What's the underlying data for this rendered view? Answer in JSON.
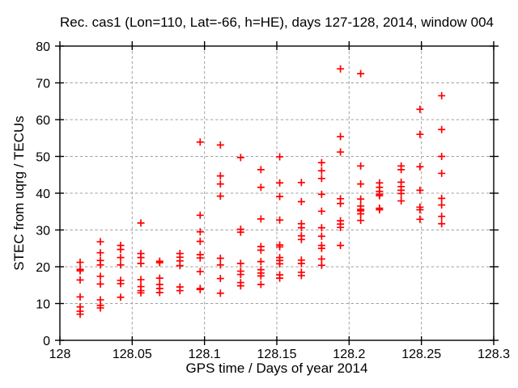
{
  "figure": {
    "background": "#ffffff",
    "border_color": "#000000"
  },
  "chart_data": {
    "type": "scatter",
    "title": "Rec. cas1 (Lon=110, Lat=-66, h=HE), days 127-128, 2014, window 004",
    "xlabel": "GPS time / Days of year 2014",
    "ylabel": "STEC from uqrg / TECUs",
    "xlim": [
      128.0,
      128.3
    ],
    "ylim": [
      0,
      80
    ],
    "xticks": {
      "values": [
        128.0,
        128.05,
        128.1,
        128.15,
        128.2,
        128.25,
        128.3
      ],
      "labels": [
        "128",
        "128.05",
        "128.1",
        "128.15",
        "128.2",
        "128.25",
        "128.3"
      ]
    },
    "yticks": {
      "values": [
        0,
        10,
        20,
        30,
        40,
        50,
        60,
        70,
        80
      ],
      "labels": [
        "0",
        "10",
        "20",
        "30",
        "40",
        "50",
        "60",
        "70",
        "80"
      ]
    },
    "grid": true,
    "grid_color": "#a0a0a0",
    "grid_dash": "3.4,2.8",
    "legend": "none",
    "marker": {
      "shape": "plus",
      "color": "#ff0000",
      "size": 9,
      "stroke_width": 1.7
    },
    "series": [
      {
        "name": "STEC from uqrg",
        "points": [
          [
            128.014,
            21.2
          ],
          [
            128.014,
            19.3
          ],
          [
            128.014,
            18.9
          ],
          [
            128.014,
            16.4
          ],
          [
            128.014,
            11.8
          ],
          [
            128.014,
            9.1
          ],
          [
            128.014,
            7.9
          ],
          [
            128.014,
            7.1
          ],
          [
            128.028,
            26.8
          ],
          [
            128.028,
            23.8
          ],
          [
            128.028,
            21.7
          ],
          [
            128.028,
            20.5
          ],
          [
            128.028,
            17.4
          ],
          [
            128.028,
            15.3
          ],
          [
            128.028,
            11.0
          ],
          [
            128.028,
            9.5
          ],
          [
            128.028,
            8.8
          ],
          [
            128.042,
            25.8
          ],
          [
            128.042,
            24.7
          ],
          [
            128.042,
            22.5
          ],
          [
            128.042,
            20.5
          ],
          [
            128.042,
            16.3
          ],
          [
            128.042,
            15.4
          ],
          [
            128.042,
            11.7
          ],
          [
            128.056,
            31.9
          ],
          [
            128.056,
            23.6
          ],
          [
            128.056,
            22.5
          ],
          [
            128.056,
            20.9
          ],
          [
            128.056,
            16.5
          ],
          [
            128.056,
            14.6
          ],
          [
            128.056,
            13.5
          ],
          [
            128.056,
            12.9
          ],
          [
            128.069,
            21.5
          ],
          [
            128.069,
            21.1
          ],
          [
            128.069,
            16.9
          ],
          [
            128.069,
            15.2
          ],
          [
            128.069,
            14.1
          ],
          [
            128.069,
            13.0
          ],
          [
            128.083,
            23.6
          ],
          [
            128.083,
            22.6
          ],
          [
            128.083,
            21.6
          ],
          [
            128.083,
            20.3
          ],
          [
            128.083,
            14.5
          ],
          [
            128.083,
            13.5
          ],
          [
            128.097,
            53.9
          ],
          [
            128.097,
            34.0
          ],
          [
            128.097,
            29.5
          ],
          [
            128.097,
            26.9
          ],
          [
            128.097,
            23.3
          ],
          [
            128.097,
            22.4
          ],
          [
            128.097,
            18.7
          ],
          [
            128.097,
            14.1
          ],
          [
            128.097,
            13.8
          ],
          [
            128.111,
            53.1
          ],
          [
            128.111,
            44.7
          ],
          [
            128.111,
            42.5
          ],
          [
            128.111,
            39.2
          ],
          [
            128.111,
            22.3
          ],
          [
            128.111,
            20.5
          ],
          [
            128.111,
            16.8
          ],
          [
            128.111,
            12.8
          ],
          [
            128.125,
            49.7
          ],
          [
            128.125,
            30.2
          ],
          [
            128.125,
            29.4
          ],
          [
            128.125,
            20.9
          ],
          [
            128.125,
            18.8
          ],
          [
            128.125,
            17.9
          ],
          [
            128.125,
            15.7
          ],
          [
            128.125,
            14.8
          ],
          [
            128.139,
            46.4
          ],
          [
            128.139,
            41.6
          ],
          [
            128.139,
            33.0
          ],
          [
            128.139,
            25.5
          ],
          [
            128.139,
            24.5
          ],
          [
            128.139,
            21.4
          ],
          [
            128.139,
            19.2
          ],
          [
            128.139,
            18.3
          ],
          [
            128.139,
            17.5
          ],
          [
            128.139,
            15.2
          ],
          [
            128.152,
            49.9
          ],
          [
            128.152,
            42.8
          ],
          [
            128.152,
            39.1
          ],
          [
            128.152,
            32.7
          ],
          [
            128.152,
            25.9
          ],
          [
            128.152,
            25.4
          ],
          [
            128.152,
            22.5
          ],
          [
            128.152,
            21.7
          ],
          [
            128.152,
            20.8
          ],
          [
            128.152,
            17.8
          ],
          [
            128.152,
            16.9
          ],
          [
            128.167,
            42.9
          ],
          [
            128.167,
            37.7
          ],
          [
            128.167,
            31.7
          ],
          [
            128.167,
            30.6
          ],
          [
            128.167,
            28.4
          ],
          [
            128.167,
            27.4
          ],
          [
            128.167,
            21.8
          ],
          [
            128.167,
            20.9
          ],
          [
            128.167,
            18.5
          ],
          [
            128.167,
            17.6
          ],
          [
            128.181,
            48.3
          ],
          [
            128.181,
            46.1
          ],
          [
            128.181,
            44.0
          ],
          [
            128.181,
            39.7
          ],
          [
            128.181,
            35.1
          ],
          [
            128.181,
            30.6
          ],
          [
            128.181,
            28.3
          ],
          [
            128.181,
            25.8
          ],
          [
            128.181,
            25.0
          ],
          [
            128.181,
            22.1
          ],
          [
            128.181,
            20.4
          ],
          [
            128.194,
            73.8
          ],
          [
            128.194,
            55.4
          ],
          [
            128.194,
            51.2
          ],
          [
            128.194,
            38.5
          ],
          [
            128.194,
            37.2
          ],
          [
            128.194,
            32.5
          ],
          [
            128.194,
            31.6
          ],
          [
            128.194,
            30.7
          ],
          [
            128.194,
            25.8
          ],
          [
            128.208,
            72.5
          ],
          [
            128.208,
            47.4
          ],
          [
            128.208,
            42.5
          ],
          [
            128.208,
            38.4
          ],
          [
            128.208,
            36.5
          ],
          [
            128.208,
            35.6
          ],
          [
            128.208,
            35.2
          ],
          [
            128.208,
            34.4
          ],
          [
            128.208,
            32.6
          ],
          [
            128.221,
            42.8
          ],
          [
            128.221,
            41.6
          ],
          [
            128.221,
            40.5
          ],
          [
            128.221,
            39.7
          ],
          [
            128.221,
            39.3
          ],
          [
            128.221,
            35.9
          ],
          [
            128.221,
            35.5
          ],
          [
            128.236,
            47.4
          ],
          [
            128.236,
            46.4
          ],
          [
            128.236,
            43.0
          ],
          [
            128.236,
            41.8
          ],
          [
            128.236,
            40.8
          ],
          [
            128.236,
            39.9
          ],
          [
            128.236,
            37.9
          ],
          [
            128.249,
            62.8
          ],
          [
            128.249,
            56.0
          ],
          [
            128.249,
            47.2
          ],
          [
            128.249,
            40.8
          ],
          [
            128.249,
            36.2
          ],
          [
            128.249,
            35.5
          ],
          [
            128.249,
            32.9
          ],
          [
            128.264,
            66.5
          ],
          [
            128.264,
            57.3
          ],
          [
            128.264,
            50.0
          ],
          [
            128.264,
            45.4
          ],
          [
            128.264,
            38.6
          ],
          [
            128.264,
            36.8
          ],
          [
            128.264,
            33.7
          ],
          [
            128.264,
            31.7
          ]
        ]
      }
    ]
  }
}
